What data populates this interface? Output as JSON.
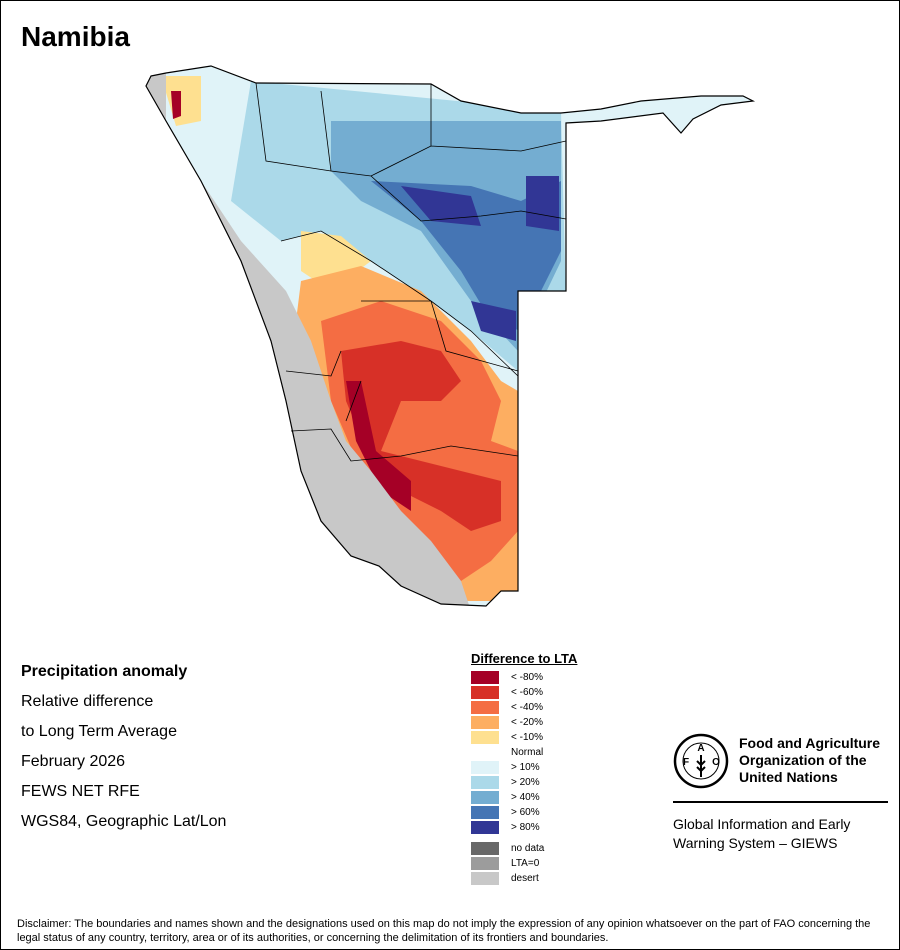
{
  "title": "Namibia",
  "info": [
    "Precipitation anomaly",
    "Relative difference",
    "to Long Term Average",
    "February 2026",
    "FEWS NET RFE",
    "WGS84, Geographic Lat/Lon"
  ],
  "legend": {
    "title": "Difference to LTA",
    "items": [
      {
        "label": "< -80%",
        "color": "#a50026"
      },
      {
        "label": "< -60%",
        "color": "#d73027"
      },
      {
        "label": "< -40%",
        "color": "#f46d43"
      },
      {
        "label": "< -20%",
        "color": "#fdae61"
      },
      {
        "label": "< -10%",
        "color": "#fee090"
      },
      {
        "label": "Normal",
        "color": "#ffffff"
      },
      {
        "label": "> 10%",
        "color": "#e0f3f8"
      },
      {
        "label": "> 20%",
        "color": "#abd9e9"
      },
      {
        "label": "> 40%",
        "color": "#74add1"
      },
      {
        "label": "> 60%",
        "color": "#4575b4"
      },
      {
        "label": "> 80%",
        "color": "#313695"
      }
    ],
    "extra": [
      {
        "label": "no data",
        "color": "#686868"
      },
      {
        "label": "LTA=0",
        "color": "#9c9c9c"
      },
      {
        "label": "desert",
        "color": "#c8c8c8"
      }
    ]
  },
  "fao": {
    "name": "Food and Agriculture Organization of the United Nations",
    "giews": "Global Information and Early Warning System – GIEWS",
    "logo_text": "FAO FIAT PANIS"
  },
  "disclaimer": "Disclaimer: The boundaries and names shown and the designations used on this map do not imply the expression of any opinion whatsoever on the part of FAO concerning the legal status of any country, territory, area or of its authorities, or concerning the delimitation of its frontiers and boundaries."
}
